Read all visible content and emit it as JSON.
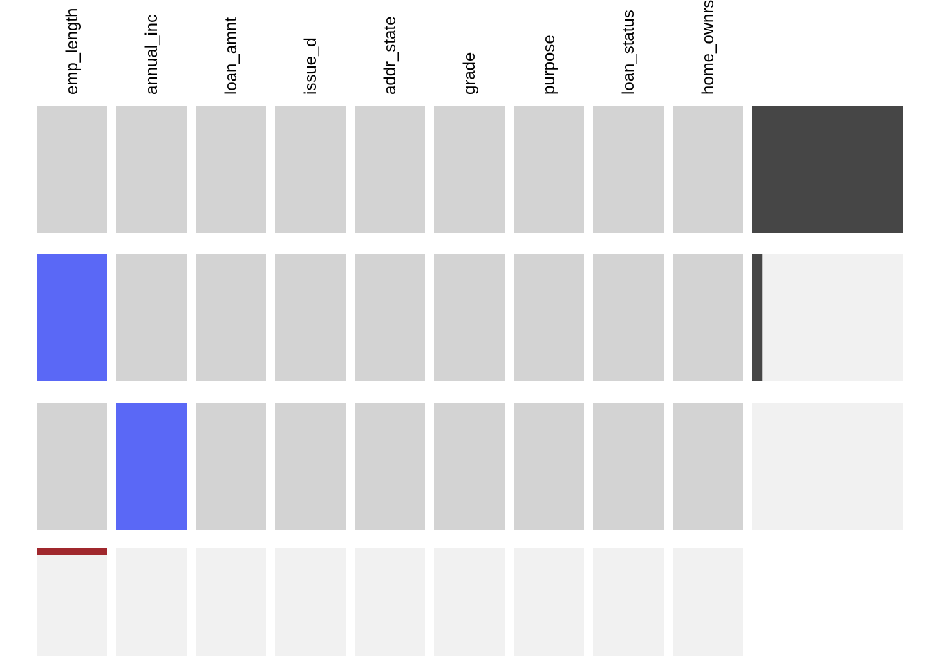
{
  "chart_data": {
    "type": "heatmap",
    "title": "",
    "xlabel": "",
    "ylabel": "",
    "columns": [
      "emp_length",
      "annual_inc",
      "loan_amnt",
      "issue_d",
      "addr_state",
      "grade",
      "purpose",
      "loan_status",
      "home_ownrs"
    ],
    "rows": [
      {
        "cells": [
          "observed",
          "observed",
          "observed",
          "observed",
          "observed",
          "observed",
          "observed",
          "observed",
          "observed"
        ],
        "bar_fraction": 1.0
      },
      {
        "cells": [
          "missing",
          "observed",
          "observed",
          "observed",
          "observed",
          "observed",
          "observed",
          "observed",
          "observed"
        ],
        "bar_fraction": 0.07
      },
      {
        "cells": [
          "observed",
          "missing",
          "observed",
          "observed",
          "observed",
          "observed",
          "observed",
          "observed",
          "observed"
        ],
        "bar_fraction": 0.0
      }
    ],
    "column_summary": {
      "values": [
        0.06,
        0,
        0,
        0,
        0,
        0,
        0,
        0,
        0
      ],
      "max": 1.0
    },
    "colors": {
      "observed": "#d3d3d3",
      "missing": "#5a68f6",
      "bar_fill": "#464646",
      "bar_track": "#f1f1f1",
      "summary_bar": "#a0282d",
      "summary_track": "#f1f1f1",
      "label_text": "#000000"
    }
  }
}
